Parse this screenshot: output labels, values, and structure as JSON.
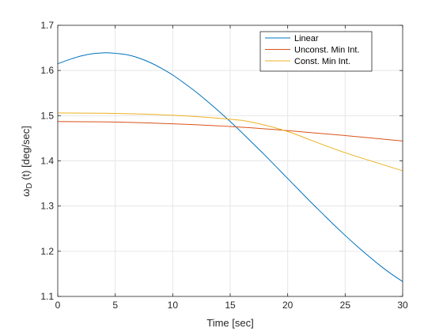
{
  "chart_data": {
    "type": "line",
    "xlabel": "Time [sec]",
    "ylabel": {
      "prefix": "ω",
      "subscript": "D",
      "suffix": " (t) [deg/sec]"
    },
    "xlim": [
      0,
      30
    ],
    "ylim": [
      1.1,
      1.7
    ],
    "xticks": [
      0,
      5,
      10,
      15,
      20,
      25,
      30
    ],
    "yticks": [
      1.1,
      1.2,
      1.3,
      1.4,
      1.5,
      1.6,
      1.7
    ],
    "xtick_labels": [
      "0",
      "5",
      "10",
      "15",
      "20",
      "25",
      "30"
    ],
    "ytick_labels": [
      "1.1",
      "1.2",
      "1.3",
      "1.4",
      "1.5",
      "1.6",
      "1.7"
    ],
    "grid": true,
    "legend_position": "top-right",
    "series": [
      {
        "name": "Linear",
        "color": "#0072BD",
        "x": [
          0,
          1,
          2,
          3,
          4,
          4.5,
          5,
          6,
          7,
          8,
          9,
          10,
          11,
          12,
          13,
          14,
          15,
          16,
          17,
          18,
          19,
          20,
          21,
          22,
          23,
          24,
          25,
          26,
          27,
          28,
          29,
          30
        ],
        "y": [
          1.615,
          1.624,
          1.632,
          1.637,
          1.639,
          1.639,
          1.638,
          1.635,
          1.628,
          1.618,
          1.605,
          1.59,
          1.572,
          1.553,
          1.532,
          1.51,
          1.487,
          1.463,
          1.438,
          1.413,
          1.387,
          1.361,
          1.335,
          1.309,
          1.284,
          1.259,
          1.235,
          1.212,
          1.19,
          1.169,
          1.15,
          1.133
        ]
      },
      {
        "name": "Unconst. Min Int.",
        "color": "#D95319",
        "x": [
          0,
          5,
          10,
          15,
          20,
          25,
          30
        ],
        "y": [
          1.487,
          1.486,
          1.482,
          1.476,
          1.467,
          1.456,
          1.444
        ]
      },
      {
        "name": "Const. Min Int.",
        "color": "#EDB120",
        "x": [
          0,
          5,
          10,
          15,
          17,
          20,
          22,
          25,
          30
        ],
        "y": [
          1.506,
          1.505,
          1.501,
          1.492,
          1.485,
          1.465,
          1.446,
          1.418,
          1.378
        ]
      }
    ]
  }
}
